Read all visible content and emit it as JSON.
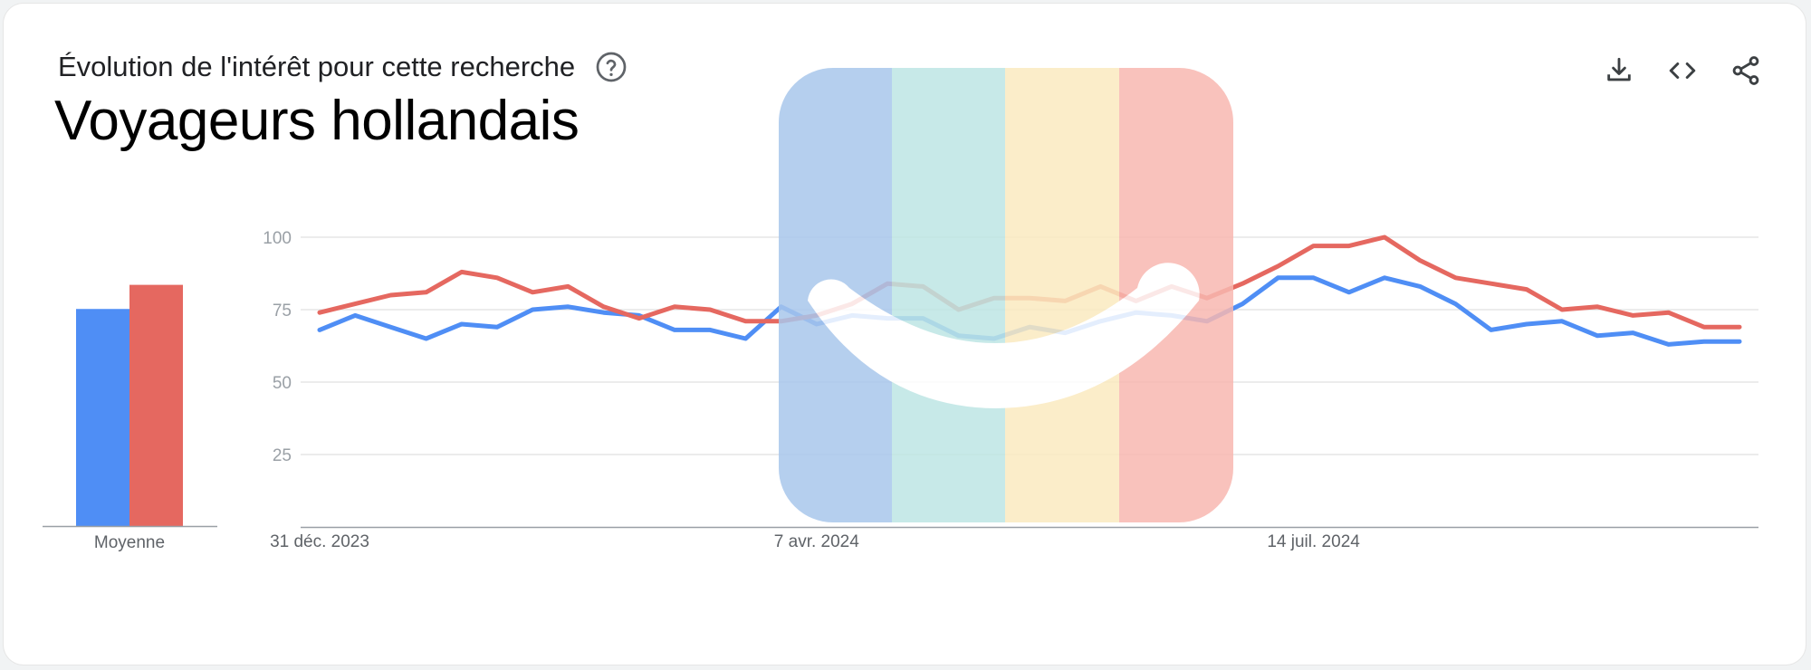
{
  "header": {
    "subtitle": "Évolution de l'intérêt pour cette recherche",
    "title": "Voyageurs hollandais"
  },
  "icons": {
    "help": "help-circle-icon",
    "download": "download-icon",
    "embed": "code-icon",
    "share": "share-icon"
  },
  "colors": {
    "series_blue": "#4f8ef5",
    "series_red": "#e56860",
    "grid": "#e0e0e0",
    "axis": "#9aa0a6",
    "overlay_blue": "#a9c7ec",
    "overlay_teal": "#bee6e4",
    "overlay_yellow": "#fbeac0",
    "overlay_red": "#f8b8b1"
  },
  "chart_data": [
    {
      "type": "bar",
      "categories": [
        "Moyenne"
      ],
      "series": [
        {
          "values": [
            72
          ]
        },
        {
          "values": [
            80
          ]
        }
      ],
      "ylim": [
        0,
        100
      ]
    },
    {
      "type": "line",
      "ylim": [
        0,
        100
      ],
      "yticks": [
        25,
        50,
        75,
        100
      ],
      "xtick_labels": [
        "31 déc. 2023",
        "7 avr. 2024",
        "14 juil. 2024"
      ],
      "xtick_index": [
        0,
        14,
        28
      ],
      "x": [
        "31 déc. 2023",
        "7 janv. 2024",
        "14 janv. 2024",
        "21 janv. 2024",
        "28 janv. 2024",
        "4 févr. 2024",
        "11 févr. 2024",
        "18 févr. 2024",
        "25 févr. 2024",
        "3 mars 2024",
        "10 mars 2024",
        "17 mars 2024",
        "24 mars 2024",
        "31 mars 2024",
        "7 avr. 2024",
        "14 avr. 2024",
        "21 avr. 2024",
        "28 avr. 2024",
        "5 mai 2024",
        "12 mai 2024",
        "19 mai 2024",
        "26 mai 2024",
        "2 juin 2024",
        "9 juin 2024",
        "16 juin 2024",
        "23 juin 2024",
        "30 juin 2024",
        "7 juil. 2024",
        "14 juil. 2024",
        "21 juil. 2024",
        "28 juil. 2024",
        "4 août 2024",
        "11 août 2024",
        "18 août 2024",
        "25 août 2024",
        "1 sept. 2024",
        "8 sept. 2024",
        "15 sept. 2024",
        "22 sept. 2024",
        "29 sept. 2024",
        "6 oct. 2024"
      ],
      "series": [
        {
          "values": [
            68,
            73,
            69,
            65,
            70,
            69,
            75,
            76,
            74,
            73,
            68,
            68,
            65,
            76,
            70,
            73,
            72,
            72,
            66,
            65,
            69,
            67,
            71,
            74,
            73,
            71,
            77,
            86,
            86,
            81,
            86,
            83,
            77,
            68,
            70,
            71,
            66,
            67,
            63,
            64,
            64
          ]
        },
        {
          "values": [
            74,
            77,
            80,
            81,
            88,
            86,
            81,
            83,
            76,
            72,
            76,
            75,
            71,
            71,
            73,
            77,
            84,
            83,
            75,
            79,
            79,
            78,
            83,
            78,
            83,
            79,
            84,
            90,
            97,
            97,
            100,
            92,
            86,
            84,
            82,
            75,
            76,
            73,
            74,
            69,
            69
          ]
        }
      ]
    }
  ]
}
